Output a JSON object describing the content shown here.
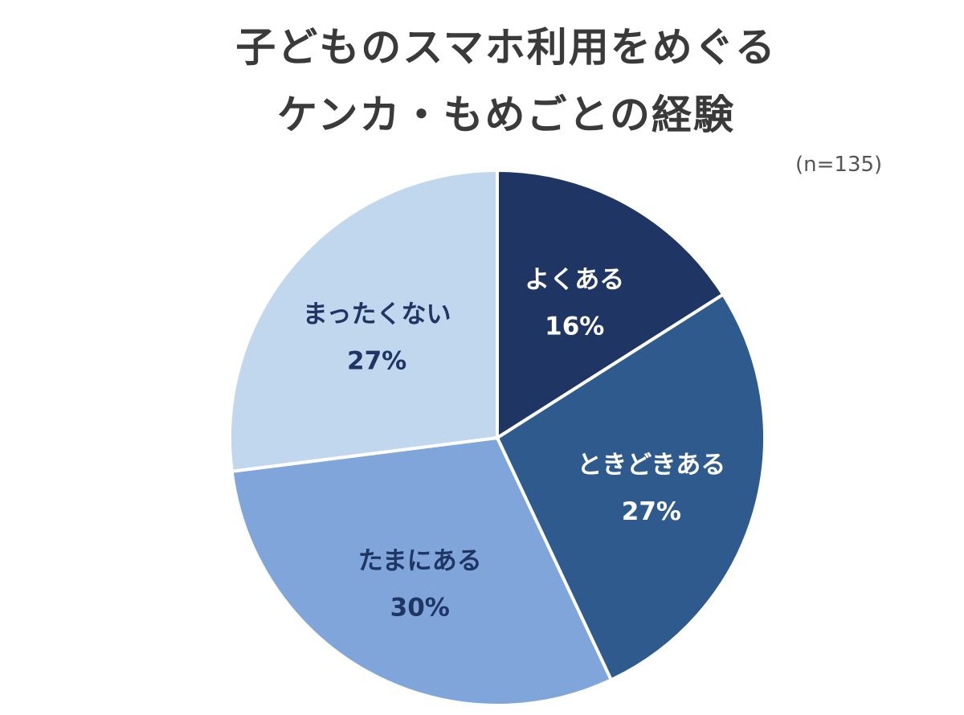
{
  "title_line1": "子どものスマホ利用をめぐる",
  "title_line2": "ケンカ・もめごとの経験",
  "sample_size": "(n=135)",
  "chart_data": {
    "type": "pie",
    "title": "子どものスマホ利用をめぐる ケンカ・もめごとの経験",
    "start_angle_deg": 0,
    "direction": "clockwise",
    "slices": [
      {
        "label": "よくある",
        "pct_label": "16%",
        "value": 16,
        "color": "#1f3564",
        "text_color": "#ffffff"
      },
      {
        "label": "ときどきある",
        "pct_label": "27%",
        "value": 27,
        "color": "#2f5a8e",
        "text_color": "#ffffff"
      },
      {
        "label": "たまにある",
        "pct_label": "30%",
        "value": 30,
        "color": "#7fa5da",
        "text_color": "#1f3564"
      },
      {
        "label": "まったくない",
        "pct_label": "27%",
        "value": 27,
        "color": "#c1d7ee",
        "text_color": "#1f3564"
      }
    ]
  }
}
